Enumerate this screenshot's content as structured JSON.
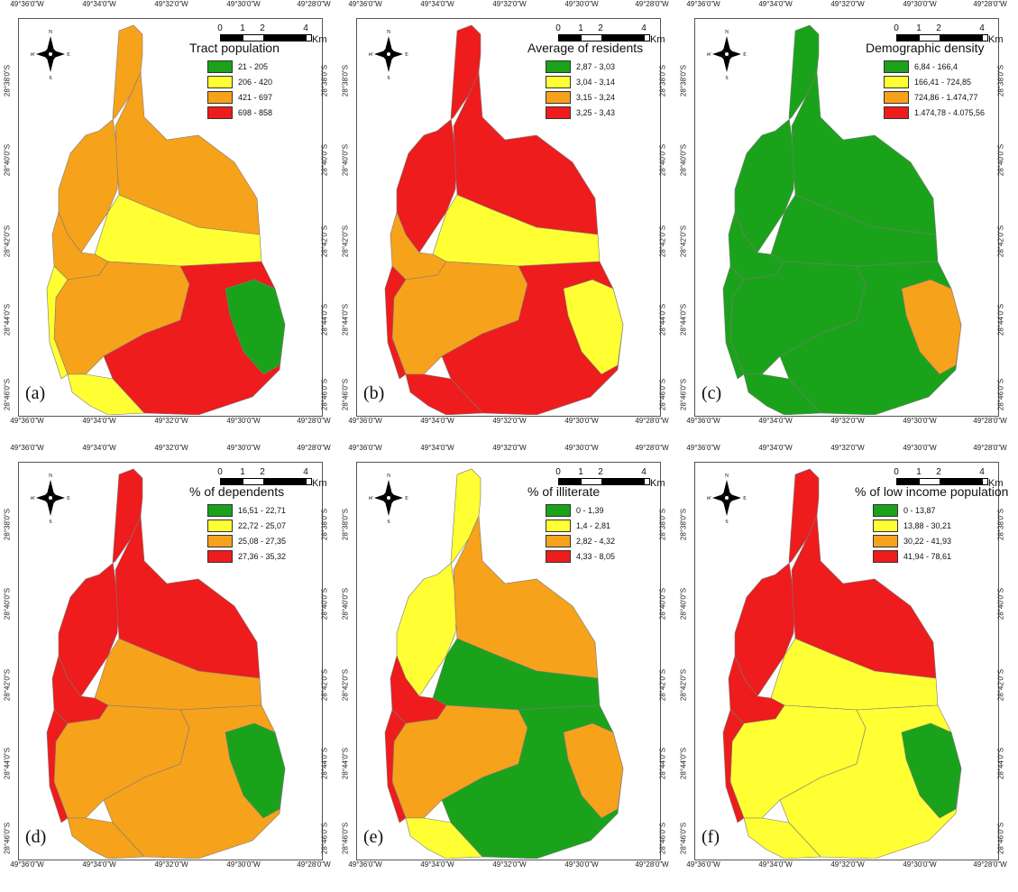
{
  "axis_ticks": {
    "top": [
      "49°36'0\"W",
      "49°34'0\"W",
      "49°32'0\"W",
      "49°30'0\"W",
      "49°28'0\"W"
    ],
    "bottom": [
      "49°36'0\"W",
      "49°34'0\"W",
      "49°32'0\"W",
      "49°30'0\"W",
      "49°28'0\"W"
    ],
    "side": [
      "28°38'0\"S",
      "28°40'0\"S",
      "28°42'0\"S",
      "28°44'0\"S",
      "28°46'0\"S"
    ]
  },
  "scale": {
    "labels": [
      "0",
      "1",
      "2",
      "4"
    ],
    "unit": "Km"
  },
  "compass": {
    "n": "N",
    "s": "S",
    "e": "E",
    "w": "W"
  },
  "colors": {
    "green": "#1aa31a",
    "yellow": "#ffff33",
    "orange": "#f7a21b",
    "red": "#ee1c1c"
  },
  "panels": [
    {
      "letter": "(a)",
      "title": "Tract population",
      "classes": [
        "21 - 205",
        "206 - 420",
        "421 - 697",
        "698 - 858"
      ]
    },
    {
      "letter": "(b)",
      "title": "Average of residents",
      "classes": [
        "2,87 - 3,03",
        "3,04 - 3,14",
        "3,15 - 3,24",
        "3,25 - 3,43"
      ]
    },
    {
      "letter": "(c)",
      "title": "Demographic density",
      "classes": [
        "6,84 - 166,4",
        "166,41 - 724,85",
        "724,86 - 1.474,77",
        "1.474,78 - 4.075,56"
      ]
    },
    {
      "letter": "(d)",
      "title": "% of dependents",
      "classes": [
        "16,51 - 22,71",
        "22,72 - 25,07",
        "25,08 - 27,35",
        "27,36 - 35,32"
      ]
    },
    {
      "letter": "(e)",
      "title": "% of illiterate",
      "classes": [
        "0 - 1,39",
        "1,4 - 2,81",
        "2,82 - 4,32",
        "4,33 - 8,05"
      ]
    },
    {
      "letter": "(f)",
      "title": "% of low income population",
      "classes": [
        "0 - 13,87",
        "13,88 - 30,21",
        "30,22 - 41,93",
        "41,94 - 78,61"
      ]
    }
  ],
  "region_fills": {
    "a": {
      "north": "orange",
      "upper": "orange",
      "center": "yellow",
      "left": "orange",
      "southwest": "orange",
      "southeast": "red",
      "bottom": "yellow",
      "east": "green",
      "strip": "yellow"
    },
    "b": {
      "north": "red",
      "upper": "red",
      "center": "yellow",
      "left": "orange",
      "southwest": "orange",
      "southeast": "red",
      "bottom": "red",
      "east": "yellow",
      "strip": "red"
    },
    "c": {
      "north": "green",
      "upper": "green",
      "center": "green",
      "left": "green",
      "southwest": "green",
      "southeast": "green",
      "bottom": "green",
      "east": "orange",
      "strip": "green"
    },
    "d": {
      "north": "red",
      "upper": "red",
      "center": "orange",
      "left": "red",
      "southwest": "orange",
      "southeast": "orange",
      "bottom": "orange",
      "east": "green",
      "strip": "red"
    },
    "e": {
      "north": "yellow",
      "upper": "orange",
      "center": "green",
      "left": "red",
      "southwest": "orange",
      "southeast": "green",
      "bottom": "yellow",
      "east": "orange",
      "strip": "red"
    },
    "f": {
      "north": "red",
      "upper": "red",
      "center": "yellow",
      "left": "red",
      "southwest": "yellow",
      "southeast": "yellow",
      "bottom": "yellow",
      "east": "green",
      "strip": "red"
    }
  }
}
